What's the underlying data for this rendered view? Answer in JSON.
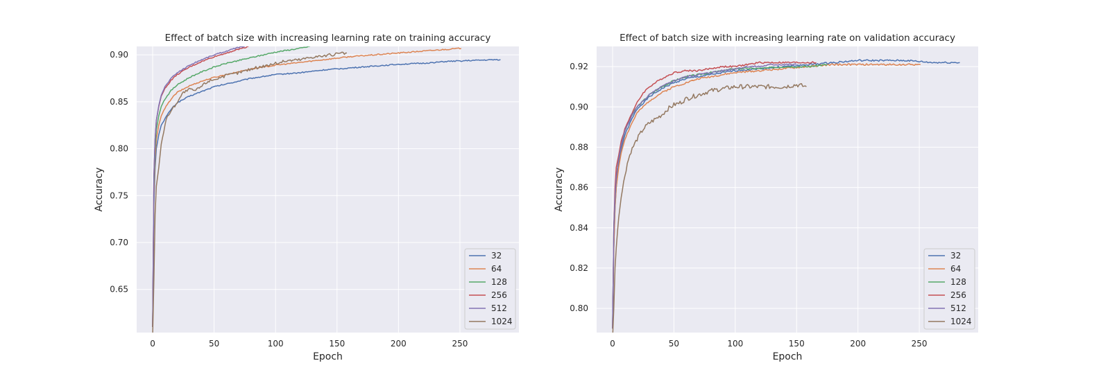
{
  "chart_data": [
    {
      "type": "line",
      "title": "Effect of batch size with increasing learning rate on training accuracy",
      "xlabel": "Epoch",
      "ylabel": "Accuracy",
      "xlim": [
        -13,
        298
      ],
      "ylim": [
        0.604,
        0.909
      ],
      "xticks": [
        0,
        50,
        100,
        150,
        200,
        250
      ],
      "yticks": [
        0.65,
        0.7,
        0.75,
        0.8,
        0.85,
        0.9
      ],
      "grid": true,
      "legend_position": "lower-right",
      "series": [
        {
          "name": "32",
          "color": "#4c72b0",
          "x": [
            0,
            1,
            2,
            3,
            5,
            7,
            10,
            15,
            20,
            30,
            40,
            50,
            60,
            70,
            80,
            90,
            100,
            120,
            140,
            160,
            180,
            200,
            220,
            240,
            260,
            283
          ],
          "y": [
            0.61,
            0.74,
            0.78,
            0.8,
            0.815,
            0.825,
            0.832,
            0.842,
            0.849,
            0.856,
            0.861,
            0.866,
            0.869,
            0.872,
            0.875,
            0.877,
            0.879,
            0.881,
            0.884,
            0.886,
            0.888,
            0.89,
            0.891,
            0.893,
            0.894,
            0.895
          ]
        },
        {
          "name": "64",
          "color": "#dd8452",
          "x": [
            0,
            1,
            2,
            3,
            5,
            7,
            10,
            15,
            20,
            30,
            40,
            50,
            60,
            70,
            80,
            90,
            100,
            120,
            140,
            160,
            180,
            200,
            220,
            240,
            251
          ],
          "y": [
            0.61,
            0.75,
            0.79,
            0.81,
            0.825,
            0.835,
            0.843,
            0.853,
            0.86,
            0.867,
            0.872,
            0.876,
            0.879,
            0.882,
            0.885,
            0.887,
            0.889,
            0.892,
            0.895,
            0.898,
            0.9,
            0.902,
            0.904,
            0.906,
            0.907
          ]
        },
        {
          "name": "128",
          "color": "#55a868",
          "x": [
            0,
            1,
            2,
            3,
            5,
            7,
            10,
            15,
            20,
            30,
            40,
            50,
            60,
            70,
            80,
            90,
            100,
            110,
            120,
            128
          ],
          "y": [
            0.61,
            0.76,
            0.8,
            0.82,
            0.835,
            0.845,
            0.853,
            0.862,
            0.868,
            0.876,
            0.882,
            0.887,
            0.891,
            0.894,
            0.897,
            0.9,
            0.903,
            0.905,
            0.907,
            0.909
          ]
        },
        {
          "name": "256",
          "color": "#c44e52",
          "x": [
            0,
            1,
            2,
            3,
            5,
            7,
            10,
            15,
            20,
            30,
            40,
            50,
            60,
            70,
            78
          ],
          "y": [
            0.61,
            0.77,
            0.81,
            0.83,
            0.845,
            0.856,
            0.864,
            0.873,
            0.879,
            0.887,
            0.893,
            0.898,
            0.902,
            0.906,
            0.909
          ]
        },
        {
          "name": "512",
          "color": "#8172b3",
          "x": [
            0,
            1,
            2,
            3,
            5,
            7,
            10,
            15,
            20,
            30,
            40,
            50,
            60,
            70,
            75
          ],
          "y": [
            0.61,
            0.77,
            0.81,
            0.83,
            0.846,
            0.857,
            0.866,
            0.875,
            0.881,
            0.889,
            0.895,
            0.9,
            0.904,
            0.908,
            0.909
          ]
        },
        {
          "name": "1024",
          "color": "#937860",
          "x": [
            0,
            1,
            2,
            3,
            5,
            7,
            10,
            12,
            15,
            20,
            25,
            30,
            35,
            40,
            45,
            50,
            60,
            70,
            80,
            90,
            100,
            110,
            120,
            130,
            140,
            150,
            158
          ],
          "y": [
            0.6,
            0.66,
            0.73,
            0.76,
            0.78,
            0.805,
            0.825,
            0.835,
            0.84,
            0.85,
            0.86,
            0.863,
            0.862,
            0.867,
            0.872,
            0.874,
            0.878,
            0.881,
            0.885,
            0.888,
            0.891,
            0.894,
            0.895,
            0.898,
            0.899,
            0.901,
            0.902
          ]
        }
      ]
    },
    {
      "type": "line",
      "title": "Effect of batch size with increasing learning rate on validation accuracy",
      "xlabel": "Epoch",
      "ylabel": "Accuracy",
      "xlim": [
        -13,
        298
      ],
      "ylim": [
        0.788,
        0.93
      ],
      "xticks": [
        0,
        50,
        100,
        150,
        200,
        250
      ],
      "yticks": [
        0.8,
        0.82,
        0.84,
        0.86,
        0.88,
        0.9,
        0.92
      ],
      "grid": true,
      "legend_position": "lower-right",
      "series": [
        {
          "name": "32",
          "color": "#4c72b0",
          "x": [
            0,
            1,
            2,
            3,
            5,
            7,
            10,
            15,
            20,
            30,
            40,
            50,
            60,
            70,
            80,
            90,
            100,
            120,
            140,
            160,
            180,
            200,
            220,
            240,
            260,
            283
          ],
          "y": [
            0.79,
            0.83,
            0.85,
            0.86,
            0.872,
            0.879,
            0.886,
            0.893,
            0.899,
            0.905,
            0.909,
            0.912,
            0.914,
            0.915,
            0.916,
            0.917,
            0.918,
            0.919,
            0.92,
            0.921,
            0.922,
            0.923,
            0.923,
            0.923,
            0.922,
            0.922
          ]
        },
        {
          "name": "64",
          "color": "#dd8452",
          "x": [
            0,
            1,
            2,
            3,
            5,
            7,
            10,
            15,
            20,
            30,
            40,
            50,
            60,
            70,
            80,
            90,
            100,
            120,
            140,
            160,
            180,
            200,
            220,
            240,
            251
          ],
          "y": [
            0.79,
            0.83,
            0.85,
            0.86,
            0.87,
            0.877,
            0.884,
            0.891,
            0.897,
            0.903,
            0.907,
            0.91,
            0.912,
            0.914,
            0.915,
            0.916,
            0.917,
            0.918,
            0.919,
            0.92,
            0.921,
            0.921,
            0.921,
            0.921,
            0.921
          ]
        },
        {
          "name": "128",
          "color": "#55a868",
          "x": [
            0,
            1,
            2,
            3,
            5,
            7,
            10,
            15,
            20,
            30,
            40,
            50,
            60,
            70,
            80,
            90,
            100,
            120,
            140,
            160,
            175
          ],
          "y": [
            0.79,
            0.84,
            0.855,
            0.865,
            0.874,
            0.881,
            0.888,
            0.895,
            0.9,
            0.906,
            0.91,
            0.913,
            0.915,
            0.916,
            0.917,
            0.918,
            0.919,
            0.919,
            0.92,
            0.92,
            0.921
          ]
        },
        {
          "name": "256",
          "color": "#c44e52",
          "x": [
            0,
            1,
            2,
            3,
            5,
            7,
            10,
            15,
            20,
            25,
            30,
            40,
            50,
            60,
            70,
            80,
            90,
            100,
            110,
            120,
            130,
            140,
            150,
            160,
            166
          ],
          "y": [
            0.79,
            0.84,
            0.86,
            0.87,
            0.876,
            0.883,
            0.889,
            0.896,
            0.902,
            0.907,
            0.91,
            0.914,
            0.917,
            0.918,
            0.918,
            0.919,
            0.92,
            0.92,
            0.921,
            0.922,
            0.922,
            0.922,
            0.922,
            0.922,
            0.922
          ]
        },
        {
          "name": "512",
          "color": "#8172b3",
          "x": [
            0,
            1,
            2,
            3,
            5,
            7,
            10,
            15,
            20,
            30,
            40,
            50,
            60,
            70,
            80,
            90,
            100,
            110,
            120,
            130,
            140,
            150
          ],
          "y": [
            0.79,
            0.84,
            0.855,
            0.865,
            0.874,
            0.881,
            0.888,
            0.895,
            0.9,
            0.906,
            0.91,
            0.913,
            0.915,
            0.916,
            0.917,
            0.918,
            0.919,
            0.92,
            0.92,
            0.921,
            0.921,
            0.921
          ]
        },
        {
          "name": "1024",
          "color": "#937860",
          "x": [
            0,
            1,
            2,
            3,
            4,
            5,
            7,
            10,
            12,
            15,
            20,
            25,
            30,
            35,
            40,
            45,
            50,
            55,
            60,
            70,
            80,
            90,
            100,
            110,
            120,
            130,
            140,
            150,
            158
          ],
          "y": [
            0.785,
            0.8,
            0.82,
            0.83,
            0.838,
            0.845,
            0.855,
            0.866,
            0.872,
            0.878,
            0.884,
            0.889,
            0.892,
            0.894,
            0.896,
            0.899,
            0.901,
            0.902,
            0.904,
            0.906,
            0.908,
            0.909,
            0.91,
            0.91,
            0.91,
            0.91,
            0.91,
            0.911,
            0.91
          ]
        }
      ]
    }
  ]
}
